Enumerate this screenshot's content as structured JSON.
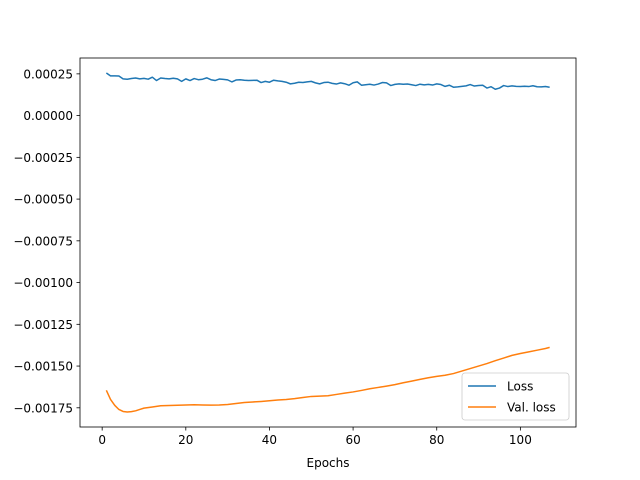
{
  "chart_data": {
    "type": "line",
    "title": "",
    "xlabel": "Epochs",
    "ylabel": "",
    "xlim": [
      -5.3,
      113.3
    ],
    "ylim": [
      -0.001865,
      0.000345
    ],
    "x_ticks": [
      0,
      20,
      40,
      60,
      80,
      100
    ],
    "x_tick_labels": [
      "0",
      "20",
      "40",
      "60",
      "80",
      "100"
    ],
    "y_ticks": [
      0.00025,
      0.0,
      -0.00025,
      -0.0005,
      -0.00075,
      -0.001,
      -0.00125,
      -0.0015,
      -0.00175
    ],
    "y_tick_labels": [
      "0.00025",
      "0.00000",
      "−0.00025",
      "−0.00050",
      "−0.00075",
      "−0.00100",
      "−0.00125",
      "−0.00150",
      "−0.00175"
    ],
    "grid": false,
    "legend_position": "lower-right",
    "series": [
      {
        "name": "Loss",
        "color": "#1f77b4",
        "x": [
          1,
          2,
          3,
          4,
          5,
          6,
          7,
          8,
          9,
          10,
          11,
          12,
          13,
          14,
          15,
          16,
          17,
          18,
          19,
          20,
          21,
          22,
          23,
          24,
          25,
          26,
          27,
          28,
          29,
          30,
          31,
          32,
          33,
          34,
          35,
          36,
          37,
          38,
          39,
          40,
          41,
          42,
          43,
          44,
          45,
          46,
          47,
          48,
          49,
          50,
          51,
          52,
          53,
          54,
          55,
          56,
          57,
          58,
          59,
          60,
          61,
          62,
          63,
          64,
          65,
          66,
          67,
          68,
          69,
          70,
          71,
          72,
          73,
          74,
          75,
          76,
          77,
          78,
          79,
          80,
          81,
          82,
          83,
          84,
          85,
          86,
          87,
          88,
          89,
          90,
          91,
          92,
          93,
          94,
          95,
          96,
          97,
          98,
          99,
          100,
          101,
          102,
          103,
          104,
          105,
          106,
          107
        ],
        "y": [
          0.000255,
          0.000238,
          0.000238,
          0.000237,
          0.00022,
          0.000218,
          0.000222,
          0.000225,
          0.00022,
          0.000223,
          0.000218,
          0.00023,
          0.00021,
          0.000225,
          0.000222,
          0.00022,
          0.000224,
          0.00022,
          0.000205,
          0.00022,
          0.00021,
          0.000222,
          0.000215,
          0.000218,
          0.000226,
          0.000215,
          0.00021,
          0.000219,
          0.000217,
          0.000214,
          0.000202,
          0.000213,
          0.000215,
          0.000212,
          0.00021,
          0.000211,
          0.000212,
          0.000198,
          0.000205,
          0.0002,
          0.000212,
          0.000208,
          0.000205,
          0.0002,
          0.00019,
          0.000194,
          0.0002,
          0.000198,
          0.000202,
          0.000205,
          0.000196,
          0.00019,
          0.000198,
          0.0002,
          0.000193,
          0.000189,
          0.000196,
          0.000191,
          0.000182,
          0.000197,
          0.000202,
          0.000182,
          0.000185,
          0.000188,
          0.000183,
          0.000189,
          0.000198,
          0.000196,
          0.00018,
          0.000187,
          0.00019,
          0.000188,
          0.000189,
          0.000185,
          0.00018,
          0.000188,
          0.000184,
          0.000187,
          0.000183,
          0.00019,
          0.000186,
          0.000175,
          0.000182,
          0.00017,
          0.000172,
          0.000175,
          0.000178,
          0.000186,
          0.000177,
          0.00018,
          0.000182,
          0.000165,
          0.000173,
          0.000158,
          0.000165,
          0.00018,
          0.000174,
          0.000178,
          0.000175,
          0.000174,
          0.000176,
          0.000174,
          0.000179,
          0.000173,
          0.000172,
          0.000174,
          0.00017
        ]
      },
      {
        "name": "Val. loss",
        "color": "#ff7f0e",
        "x": [
          1,
          2,
          3,
          4,
          5,
          6,
          7,
          8,
          9,
          10,
          12,
          14,
          16,
          18,
          20,
          22,
          24,
          26,
          28,
          30,
          32,
          34,
          36,
          38,
          40,
          42,
          44,
          46,
          48,
          50,
          52,
          54,
          56,
          58,
          60,
          62,
          64,
          66,
          68,
          70,
          72,
          74,
          76,
          78,
          80,
          82,
          84,
          86,
          88,
          90,
          92,
          94,
          96,
          98,
          100,
          102,
          104,
          106,
          107
        ],
        "y": [
          -0.001645,
          -0.0017,
          -0.001735,
          -0.00176,
          -0.001772,
          -0.001775,
          -0.001773,
          -0.001768,
          -0.00176,
          -0.001752,
          -0.001745,
          -0.001738,
          -0.001736,
          -0.001735,
          -0.001733,
          -0.001732,
          -0.001733,
          -0.001734,
          -0.001733,
          -0.00173,
          -0.001724,
          -0.001718,
          -0.001715,
          -0.001712,
          -0.001708,
          -0.001703,
          -0.0017,
          -0.001695,
          -0.001688,
          -0.001682,
          -0.00168,
          -0.001678,
          -0.00167,
          -0.001662,
          -0.001655,
          -0.001646,
          -0.001636,
          -0.001628,
          -0.00162,
          -0.001611,
          -0.0016,
          -0.00159,
          -0.00158,
          -0.00157,
          -0.001562,
          -0.001555,
          -0.001545,
          -0.00153,
          -0.001515,
          -0.0015,
          -0.001485,
          -0.001468,
          -0.001452,
          -0.001436,
          -0.001425,
          -0.001415,
          -0.001405,
          -0.001395,
          -0.001388
        ]
      }
    ]
  }
}
